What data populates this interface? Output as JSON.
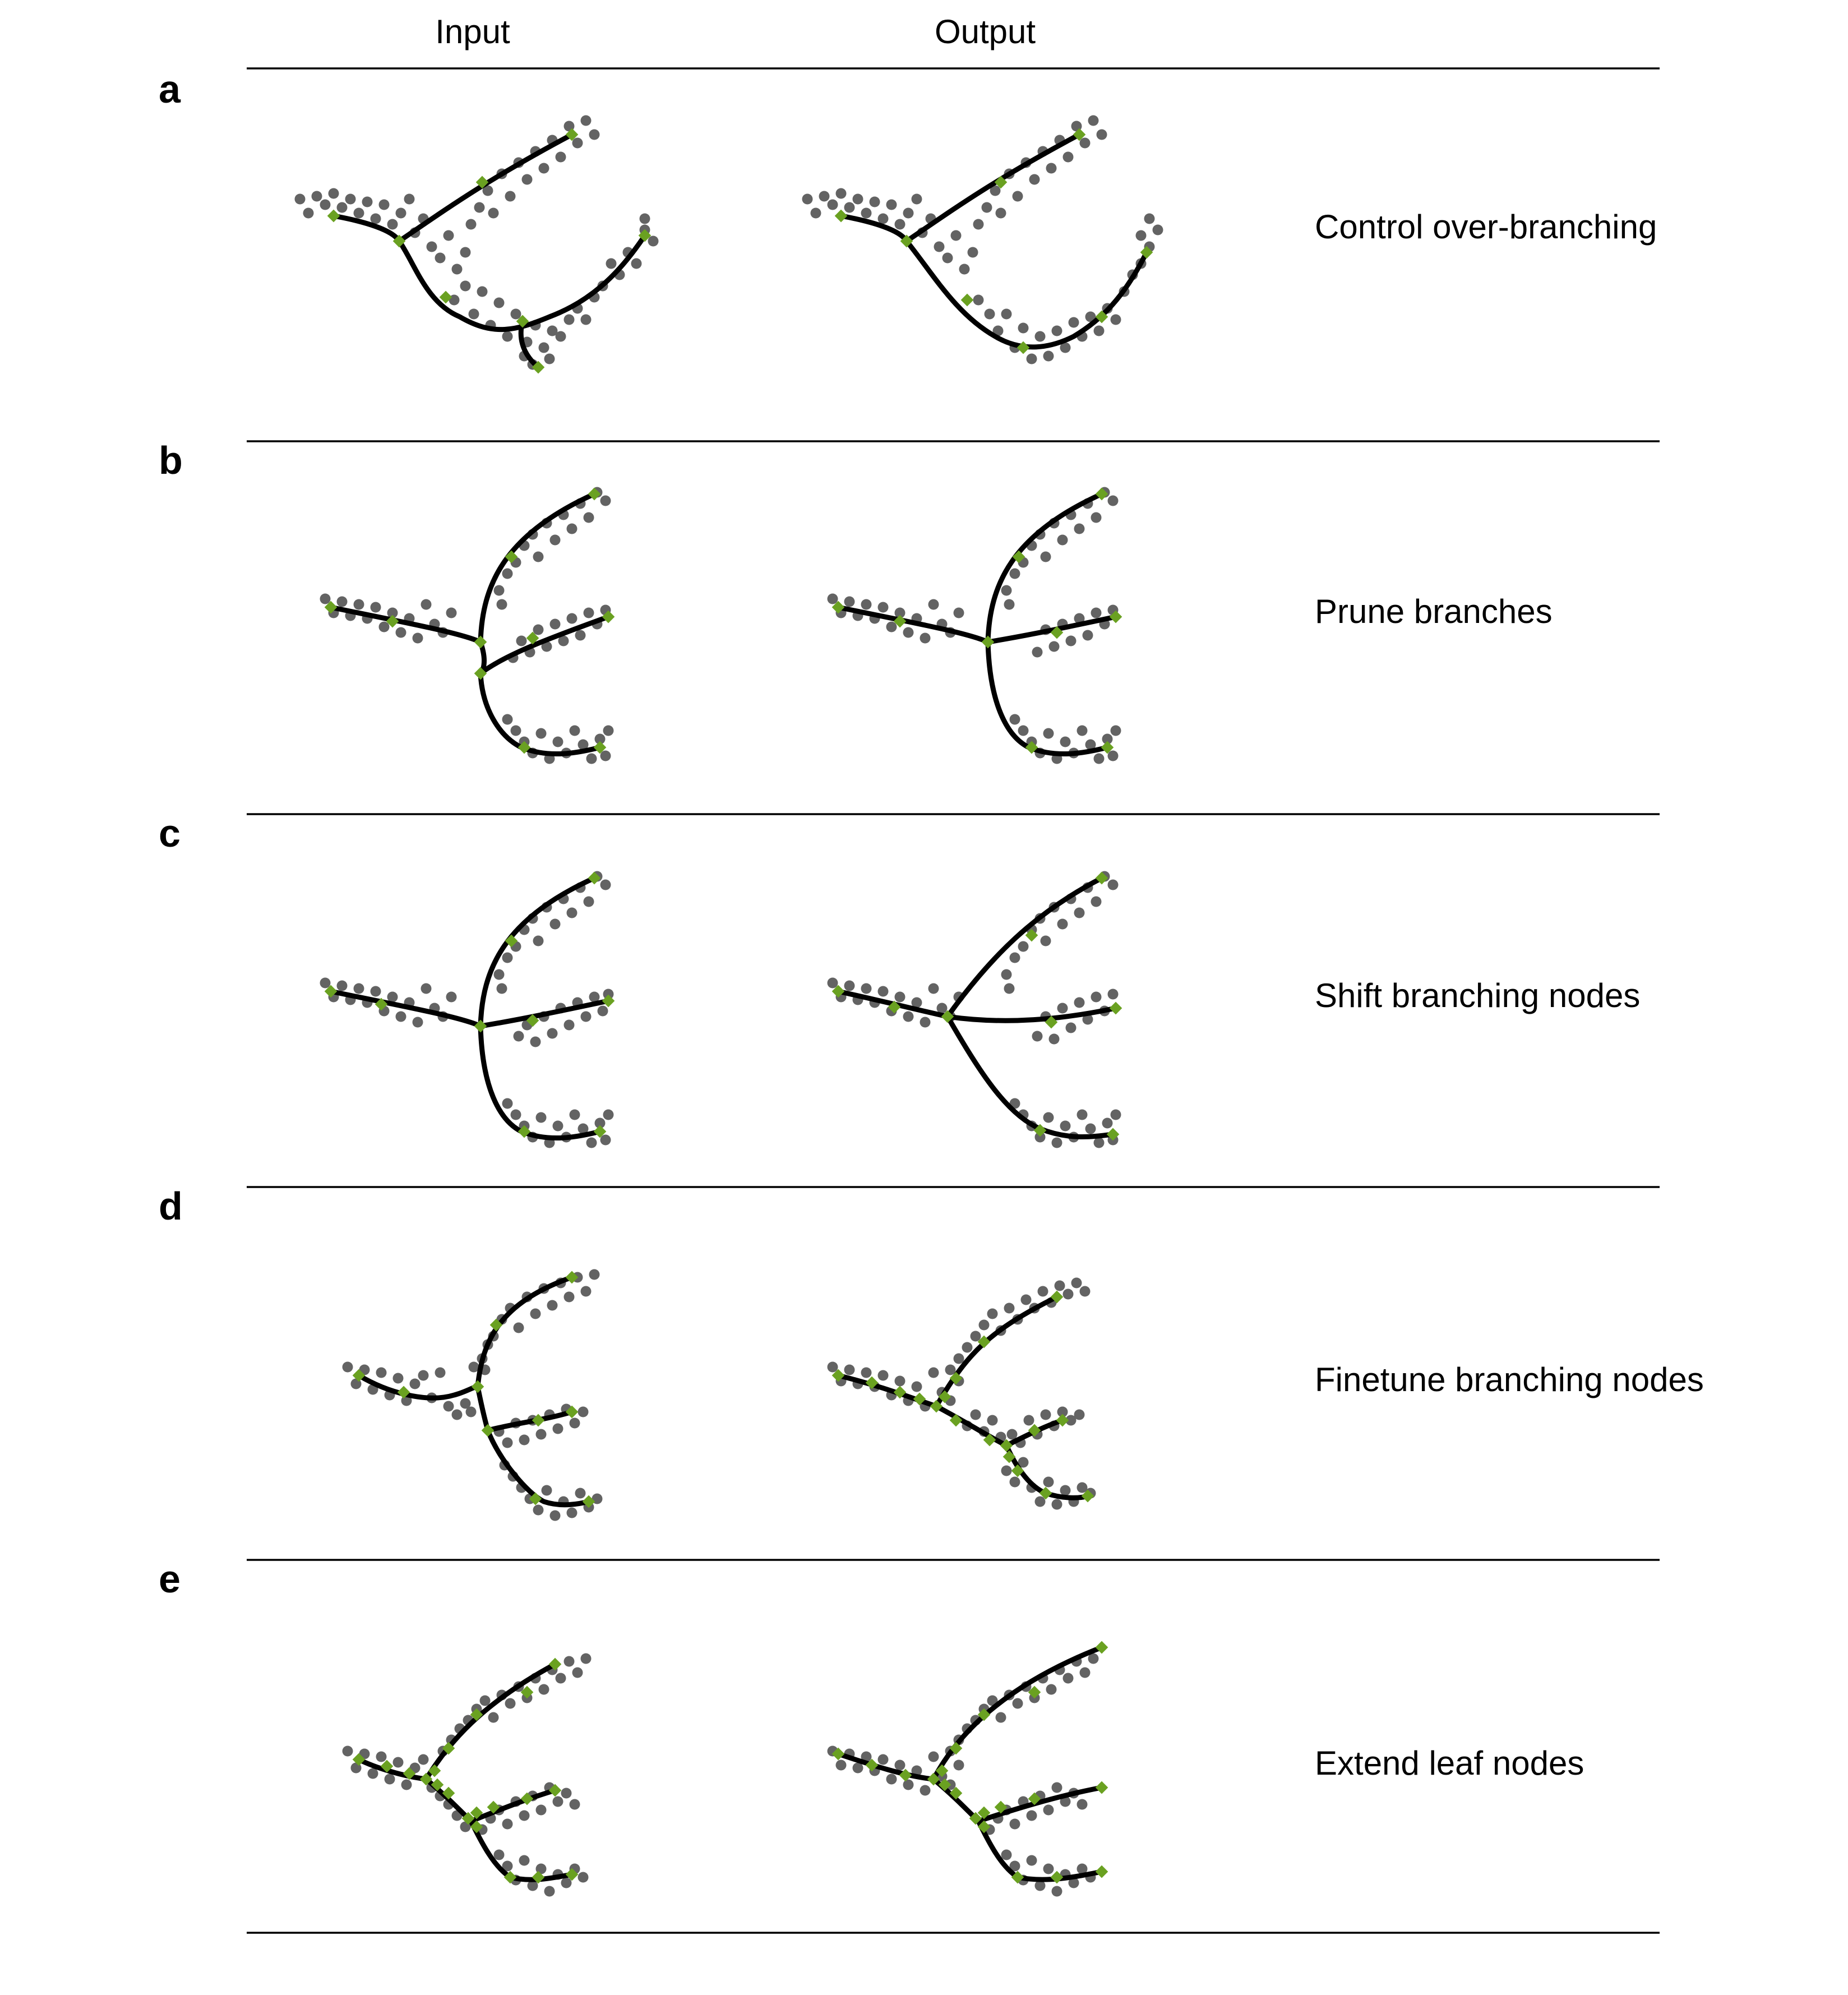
{
  "columns": {
    "input": "Input",
    "output": "Output"
  },
  "colors": {
    "data_point": "#636363",
    "curve": "#000000",
    "node": "#6aa121"
  },
  "panels": [
    {
      "label": "a",
      "caption": "Control over-branching"
    },
    {
      "label": "b",
      "caption": "Prune branches"
    },
    {
      "label": "c",
      "caption": "Shift branching nodes"
    },
    {
      "label": "d",
      "caption": "Finetune branching nodes"
    },
    {
      "label": "e",
      "caption": "Extend leaf nodes"
    }
  ]
}
